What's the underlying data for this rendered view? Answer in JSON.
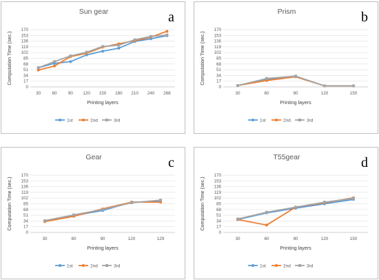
{
  "chart_data": [
    {
      "type": "line",
      "title": "Sun gear",
      "panel_label": "a",
      "xlabel": "Printing layers",
      "ylabel": "Computation Time (sec.)",
      "categories": [
        "30",
        "60",
        "90",
        "120",
        "150",
        "180",
        "210",
        "240",
        "268"
      ],
      "yticks": [
        "0",
        "17",
        "34",
        "51",
        "68",
        "85",
        "102",
        "119",
        "136",
        "153",
        "170"
      ],
      "ylim": [
        0,
        170
      ],
      "grid": true,
      "legend_position": "bottom",
      "series": [
        {
          "name": "1st",
          "color": "#5b9bd5",
          "marker": "circle",
          "values": [
            57,
            70,
            75,
            95,
            106,
            115,
            135,
            143,
            152
          ]
        },
        {
          "name": "2nd",
          "color": "#ed7d31",
          "marker": "circle",
          "values": [
            50,
            62,
            90,
            100,
            118,
            128,
            137,
            148,
            165
          ]
        },
        {
          "name": "3rd",
          "color": "#a5a5a5",
          "marker": "square",
          "values": [
            57,
            75,
            92,
            103,
            120,
            124,
            140,
            150,
            154
          ]
        }
      ]
    },
    {
      "type": "line",
      "title": "Prism",
      "panel_label": "b",
      "xlabel": "Printing layers",
      "ylabel": "Computation Time (sec.)",
      "categories": [
        "30",
        "60",
        "90",
        "120",
        "150"
      ],
      "yticks": [
        "0",
        "17",
        "34",
        "51",
        "68",
        "85",
        "102",
        "119",
        "136",
        "153",
        "170"
      ],
      "ylim": [
        0,
        170
      ],
      "grid": true,
      "legend_position": "bottom",
      "series": [
        {
          "name": "1st",
          "color": "#5b9bd5",
          "marker": "circle",
          "values": [
            4,
            23,
            31,
            3,
            3
          ]
        },
        {
          "name": "2nd",
          "color": "#ed7d31",
          "marker": "circle",
          "values": [
            4,
            19,
            30,
            3,
            3
          ]
        },
        {
          "name": "3rd",
          "color": "#a5a5a5",
          "marker": "square",
          "values": [
            4,
            25,
            32,
            3,
            3
          ]
        }
      ]
    },
    {
      "type": "line",
      "title": "Gear",
      "panel_label": "c",
      "xlabel": "Printing layers",
      "ylabel": "Computation Time (sec.)",
      "categories": [
        "30",
        "60",
        "90",
        "120",
        "129"
      ],
      "yticks": [
        "0",
        "17",
        "34",
        "51",
        "68",
        "85",
        "102",
        "119",
        "136",
        "153",
        "170"
      ],
      "ylim": [
        0,
        170
      ],
      "grid": true,
      "legend_position": "bottom",
      "series": [
        {
          "name": "1st",
          "color": "#5b9bd5",
          "marker": "circle",
          "values": [
            33,
            50,
            65,
            90,
            92
          ]
        },
        {
          "name": "2nd",
          "color": "#ed7d31",
          "marker": "circle",
          "values": [
            32,
            48,
            70,
            90,
            90
          ]
        },
        {
          "name": "3rd",
          "color": "#a5a5a5",
          "marker": "square",
          "values": [
            35,
            52,
            68,
            88,
            96
          ]
        }
      ]
    },
    {
      "type": "line",
      "title": "T55gear",
      "panel_label": "d",
      "xlabel": "Printing layers",
      "ylabel": "Computation Time (sec.)",
      "categories": [
        "30",
        "60",
        "90",
        "120",
        "150"
      ],
      "yticks": [
        "0",
        "17",
        "34",
        "51",
        "68",
        "85",
        "102",
        "119",
        "136",
        "153",
        "170"
      ],
      "ylim": [
        0,
        170
      ],
      "grid": true,
      "legend_position": "bottom",
      "series": [
        {
          "name": "1st",
          "color": "#5b9bd5",
          "marker": "circle",
          "values": [
            38,
            58,
            72,
            85,
            98
          ]
        },
        {
          "name": "2nd",
          "color": "#ed7d31",
          "marker": "circle",
          "values": [
            38,
            22,
            75,
            88,
            103
          ]
        },
        {
          "name": "3rd",
          "color": "#a5a5a5",
          "marker": "square",
          "values": [
            40,
            60,
            75,
            90,
            101
          ]
        }
      ]
    }
  ]
}
